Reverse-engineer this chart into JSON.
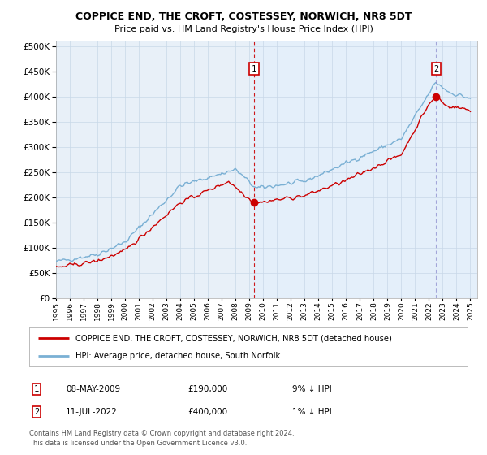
{
  "title1": "COPPICE END, THE CROFT, COSTESSEY, NORWICH, NR8 5DT",
  "title2": "Price paid vs. HM Land Registry's House Price Index (HPI)",
  "yticks": [
    0,
    50000,
    100000,
    150000,
    200000,
    250000,
    300000,
    350000,
    400000,
    450000,
    500000
  ],
  "ylim": [
    0,
    510000
  ],
  "xtick_years": [
    1995,
    1996,
    1997,
    1998,
    1999,
    2000,
    2001,
    2002,
    2003,
    2004,
    2005,
    2006,
    2007,
    2008,
    2009,
    2010,
    2011,
    2012,
    2013,
    2014,
    2015,
    2016,
    2017,
    2018,
    2019,
    2020,
    2021,
    2022,
    2023,
    2024,
    2025
  ],
  "sale1_x": 2009.35,
  "sale1_y": 190000,
  "sale2_x": 2022.53,
  "sale2_y": 400000,
  "legend_line1": "COPPICE END, THE CROFT, COSTESSEY, NORWICH, NR8 5DT (detached house)",
  "legend_line2": "HPI: Average price, detached house, South Norfolk",
  "ann1_date": "08-MAY-2009",
  "ann1_price": "£190,000",
  "ann1_hpi": "9% ↓ HPI",
  "ann2_date": "11-JUL-2022",
  "ann2_price": "£400,000",
  "ann2_hpi": "1% ↓ HPI",
  "footer1": "Contains HM Land Registry data © Crown copyright and database right 2024.",
  "footer2": "This data is licensed under the Open Government Licence v3.0.",
  "red_color": "#cc0000",
  "blue_color": "#7ab0d4",
  "shade_color": "#ddeeff",
  "plot_bg": "#e8f0f8"
}
